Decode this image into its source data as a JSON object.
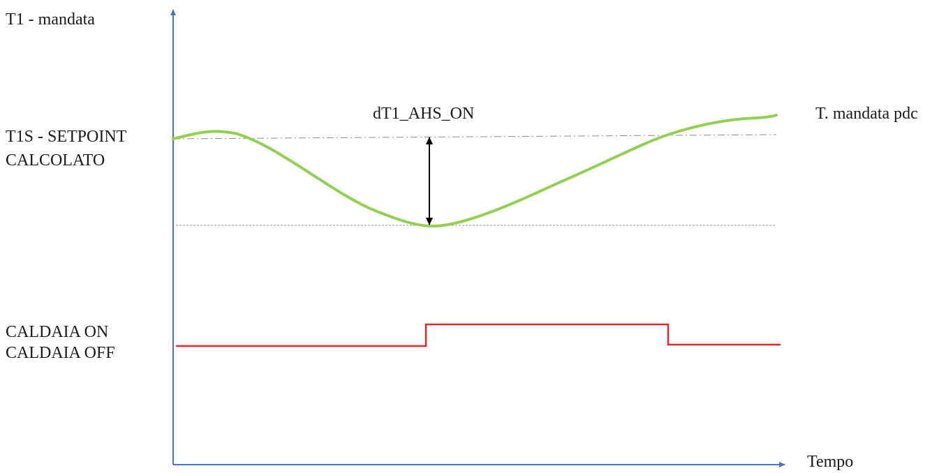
{
  "labels": {
    "y_axis": "T1 - mandata",
    "setpoint_line1": "T1S - SETPOINT",
    "setpoint_line2": "CALCOLATO",
    "delta": "dT1_AHS_ON",
    "curve": "T. mandata pdc",
    "boiler_on": "CALDAIA ON",
    "boiler_off": "CALDAIA OFF",
    "x_axis": "Tempo"
  },
  "colors": {
    "axis": "#4472c4",
    "temperature_curve": "#92d050",
    "boiler_signal": "#e8232a",
    "reference_lines": "#8c8c8c",
    "arrow": "#000000"
  }
}
